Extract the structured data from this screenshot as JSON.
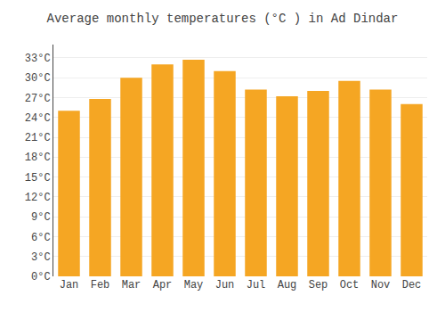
{
  "chart_data": {
    "type": "bar",
    "title": "Average monthly temperatures (°C ) in Ad Dindar",
    "categories": [
      "Jan",
      "Feb",
      "Mar",
      "Apr",
      "May",
      "Jun",
      "Jul",
      "Aug",
      "Sep",
      "Oct",
      "Nov",
      "Dec"
    ],
    "values": [
      25.0,
      26.8,
      30.0,
      32.0,
      32.7,
      31.0,
      28.2,
      27.2,
      28.0,
      29.5,
      28.2,
      26.0
    ],
    "color": "#F5A623",
    "ylim": [
      0,
      35
    ],
    "yticks": [
      {
        "value": 0,
        "label": "0°C"
      },
      {
        "value": 3,
        "label": "3°C"
      },
      {
        "value": 6,
        "label": "6°C"
      },
      {
        "value": 9,
        "label": "9°C"
      },
      {
        "value": 12,
        "label": "12°C"
      },
      {
        "value": 15,
        "label": "15°C"
      },
      {
        "value": 18,
        "label": "18°C"
      },
      {
        "value": 21,
        "label": "21°C"
      },
      {
        "value": 24,
        "label": "24°C"
      },
      {
        "value": 27,
        "label": "27°C"
      },
      {
        "value": 30,
        "label": "30°C"
      },
      {
        "value": 33,
        "label": "33°C"
      }
    ],
    "grid": true
  }
}
